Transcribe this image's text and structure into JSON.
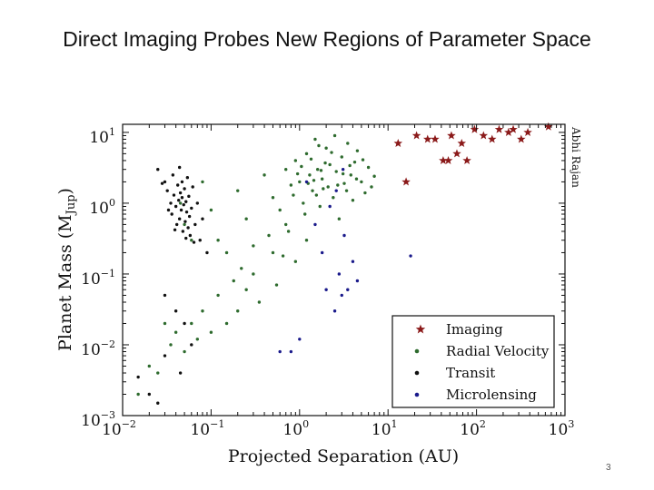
{
  "slide": {
    "title": "Direct Imaging Probes New Regions of Parameter Space",
    "page_number": "3"
  },
  "chart_data": {
    "type": "scatter",
    "xscale": "log",
    "yscale": "log",
    "xlim": [
      0.01,
      1000
    ],
    "ylim": [
      0.001,
      13
    ],
    "xlabel": "Projected Separation (AU)",
    "ylabel": "Planet Mass (M",
    "ylabel_sub": "Jup",
    "ylabel_close": ")",
    "x_ticks": [
      {
        "value": 0.01,
        "base": "10",
        "exp": "−2"
      },
      {
        "value": 0.1,
        "base": "10",
        "exp": "−1"
      },
      {
        "value": 1,
        "base": "10",
        "exp": "0"
      },
      {
        "value": 10,
        "base": "10",
        "exp": "1"
      },
      {
        "value": 100,
        "base": "10",
        "exp": "2"
      },
      {
        "value": 1000,
        "base": "10",
        "exp": "3"
      }
    ],
    "y_ticks": [
      {
        "value": 0.001,
        "base": "10",
        "exp": "−3"
      },
      {
        "value": 0.01,
        "base": "10",
        "exp": "−2"
      },
      {
        "value": 0.1,
        "base": "10",
        "exp": "−1"
      },
      {
        "value": 1,
        "base": "10",
        "exp": "0"
      },
      {
        "value": 10,
        "base": "10",
        "exp": "1"
      }
    ],
    "annotation": "Abhi Rajan",
    "legend_position": "lower-right",
    "series": [
      {
        "name": "Imaging",
        "marker": "star",
        "color": "#8b1a1a",
        "points": [
          [
            13,
            7
          ],
          [
            16,
            2
          ],
          [
            21,
            9
          ],
          [
            28,
            8
          ],
          [
            34,
            8
          ],
          [
            42,
            4
          ],
          [
            48,
            4
          ],
          [
            52,
            9
          ],
          [
            60,
            5
          ],
          [
            68,
            7
          ],
          [
            78,
            4
          ],
          [
            95,
            11
          ],
          [
            120,
            9
          ],
          [
            150,
            8
          ],
          [
            180,
            11
          ],
          [
            230,
            10
          ],
          [
            260,
            11
          ],
          [
            320,
            8
          ],
          [
            380,
            10
          ],
          [
            650,
            12
          ]
        ]
      },
      {
        "name": "Radial Velocity",
        "marker": "dot",
        "color": "#2e6b2e",
        "points": [
          [
            0.045,
            1.0
          ],
          [
            0.05,
            0.5
          ],
          [
            0.06,
            0.3
          ],
          [
            0.08,
            2.0
          ],
          [
            0.1,
            0.8
          ],
          [
            0.12,
            0.3
          ],
          [
            0.15,
            0.2
          ],
          [
            0.2,
            1.5
          ],
          [
            0.25,
            0.6
          ],
          [
            0.3,
            0.1
          ],
          [
            0.4,
            2.5
          ],
          [
            0.5,
            1.2
          ],
          [
            0.6,
            0.8
          ],
          [
            0.7,
            3.0
          ],
          [
            0.8,
            1.8
          ],
          [
            0.9,
            4.0
          ],
          [
            1.0,
            2.0
          ],
          [
            1.1,
            1.0
          ],
          [
            1.2,
            5.0
          ],
          [
            1.3,
            2.5
          ],
          [
            1.4,
            1.5
          ],
          [
            1.5,
            8.0
          ],
          [
            1.6,
            3.0
          ],
          [
            1.7,
            0.9
          ],
          [
            1.8,
            2.2
          ],
          [
            2.0,
            6.0
          ],
          [
            2.1,
            1.7
          ],
          [
            2.2,
            3.5
          ],
          [
            2.4,
            1.2
          ],
          [
            2.5,
            9.0
          ],
          [
            2.6,
            2.8
          ],
          [
            2.8,
            0.6
          ],
          [
            3.0,
            4.5
          ],
          [
            3.2,
            1.9
          ],
          [
            3.5,
            7.0
          ],
          [
            3.8,
            2.5
          ],
          [
            4.0,
            1.1
          ],
          [
            4.2,
            3.8
          ],
          [
            4.5,
            5.5
          ],
          [
            5.0,
            2.0
          ],
          [
            5.5,
            1.4
          ],
          [
            6.0,
            3.2
          ],
          [
            7.0,
            2.4
          ],
          [
            0.9,
            0.15
          ],
          [
            1.2,
            0.3
          ],
          [
            0.7,
            0.5
          ],
          [
            0.5,
            0.2
          ],
          [
            0.35,
            0.04
          ],
          [
            0.25,
            0.06
          ],
          [
            0.2,
            0.03
          ],
          [
            0.15,
            0.02
          ],
          [
            0.12,
            0.05
          ],
          [
            0.1,
            0.015
          ],
          [
            0.08,
            0.03
          ],
          [
            0.07,
            0.012
          ],
          [
            0.06,
            0.02
          ],
          [
            0.05,
            0.008
          ],
          [
            0.04,
            0.015
          ],
          [
            0.03,
            0.02
          ],
          [
            0.02,
            0.005
          ],
          [
            0.015,
            0.002
          ],
          [
            0.025,
            0.004
          ],
          [
            0.035,
            0.01
          ],
          [
            0.18,
            0.08
          ],
          [
            0.22,
            0.12
          ],
          [
            0.3,
            0.25
          ],
          [
            0.45,
            0.35
          ],
          [
            0.55,
            0.07
          ],
          [
            0.65,
            0.18
          ],
          [
            0.75,
            0.4
          ],
          [
            0.85,
            1.3
          ],
          [
            0.95,
            2.6
          ],
          [
            1.05,
            3.3
          ],
          [
            1.15,
            0.7
          ],
          [
            1.25,
            1.9
          ],
          [
            1.35,
            4.2
          ],
          [
            1.45,
            2.1
          ],
          [
            1.55,
            1.3
          ],
          [
            1.65,
            6.5
          ],
          [
            1.75,
            2.9
          ],
          [
            1.85,
            1.6
          ],
          [
            1.95,
            3.7
          ],
          [
            2.3,
            5.2
          ],
          [
            2.7,
            1.8
          ],
          [
            3.1,
            2.6
          ],
          [
            3.4,
            1.5
          ],
          [
            3.7,
            3.4
          ],
          [
            4.4,
            2.2
          ],
          [
            5.2,
            4.1
          ],
          [
            6.5,
            1.7
          ]
        ]
      },
      {
        "name": "Transit",
        "marker": "dot",
        "color": "#111111",
        "points": [
          [
            0.03,
            2.0
          ],
          [
            0.032,
            1.5
          ],
          [
            0.035,
            1.0
          ],
          [
            0.036,
            0.7
          ],
          [
            0.038,
            1.3
          ],
          [
            0.04,
            0.9
          ],
          [
            0.041,
            0.5
          ],
          [
            0.042,
            1.8
          ],
          [
            0.043,
            1.1
          ],
          [
            0.044,
            0.6
          ],
          [
            0.045,
            1.4
          ],
          [
            0.046,
            0.8
          ],
          [
            0.047,
            1.2
          ],
          [
            0.048,
            0.4
          ],
          [
            0.049,
            0.95
          ],
          [
            0.05,
            1.6
          ],
          [
            0.051,
            0.55
          ],
          [
            0.052,
            1.05
          ],
          [
            0.053,
            0.75
          ],
          [
            0.054,
            2.3
          ],
          [
            0.055,
            0.45
          ],
          [
            0.056,
            1.25
          ],
          [
            0.057,
            0.65
          ],
          [
            0.058,
            0.35
          ],
          [
            0.06,
            0.85
          ],
          [
            0.062,
            1.7
          ],
          [
            0.064,
            0.28
          ],
          [
            0.066,
            0.5
          ],
          [
            0.07,
            1.0
          ],
          [
            0.075,
            0.3
          ],
          [
            0.08,
            0.6
          ],
          [
            0.09,
            0.2
          ],
          [
            0.025,
            3.0
          ],
          [
            0.028,
            1.9
          ],
          [
            0.033,
            0.8
          ],
          [
            0.037,
            2.5
          ],
          [
            0.039,
            0.42
          ],
          [
            0.044,
            3.2
          ],
          [
            0.047,
            2.0
          ],
          [
            0.052,
            0.32
          ],
          [
            0.03,
            0.05
          ],
          [
            0.04,
            0.03
          ],
          [
            0.05,
            0.02
          ],
          [
            0.06,
            0.01
          ],
          [
            0.045,
            0.004
          ],
          [
            0.02,
            0.002
          ],
          [
            0.025,
            0.0015
          ],
          [
            0.03,
            0.007
          ],
          [
            0.015,
            0.0035
          ]
        ]
      },
      {
        "name": "Microlensing",
        "marker": "dot",
        "color": "#1a1a8b",
        "points": [
          [
            0.6,
            0.008
          ],
          [
            0.8,
            0.008
          ],
          [
            1.0,
            0.012
          ],
          [
            1.2,
            2.0
          ],
          [
            1.5,
            0.5
          ],
          [
            1.8,
            0.2
          ],
          [
            2.0,
            0.06
          ],
          [
            2.2,
            0.9
          ],
          [
            2.5,
            0.03
          ],
          [
            2.8,
            0.1
          ],
          [
            3.0,
            0.05
          ],
          [
            3.2,
            0.35
          ],
          [
            3.5,
            0.06
          ],
          [
            4.0,
            0.15
          ],
          [
            4.5,
            0.08
          ],
          [
            2.6,
            1.5
          ],
          [
            3.1,
            3.0
          ],
          [
            18,
            0.18
          ]
        ]
      }
    ]
  }
}
